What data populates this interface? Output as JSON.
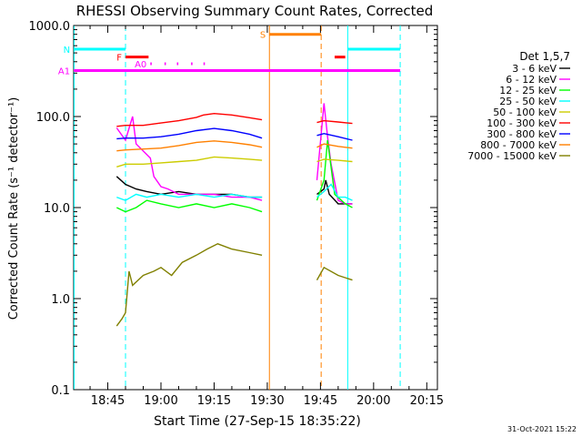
{
  "chart_data": {
    "type": "line",
    "title": "RHESSI Observing Summary Count Rates, Corrected",
    "ylabel": "Corrected Count Rate (s⁻¹ detector⁻¹)",
    "xlabel": "Start Time (27-Sep-15 18:35:22)",
    "x_tick_labels": [
      "18:45",
      "19:00",
      "19:15",
      "19:30",
      "19:45",
      "20:00",
      "20:15"
    ],
    "x_tick_minutes": [
      45,
      60,
      75,
      90,
      105,
      120,
      135
    ],
    "xlim_minutes": [
      35.37,
      138
    ],
    "y_scale": "log",
    "ylim": [
      0.1,
      1000
    ],
    "y_tick_labels": [
      "0.1",
      "1.0",
      "10.0",
      "100.0",
      "1000.0"
    ],
    "y_tick_values": [
      0.1,
      1,
      10,
      100,
      1000
    ],
    "legend_placement": "right",
    "legend_title": "Det 1,5,7",
    "series": [
      {
        "name": "3 - 6 keV",
        "color": "#000000",
        "points": [
          [
            47.5,
            22
          ],
          [
            50,
            18
          ],
          [
            53,
            16
          ],
          [
            56,
            15
          ],
          [
            60,
            14
          ],
          [
            65,
            15
          ],
          [
            70,
            14
          ],
          [
            75,
            14
          ],
          [
            80,
            14
          ],
          [
            85,
            13
          ],
          [
            88.5,
            13
          ],
          [
            100,
            0
          ],
          [
            104,
            14
          ],
          [
            106,
            16
          ],
          [
            106.5,
            20
          ],
          [
            107.5,
            14
          ],
          [
            110,
            11
          ],
          [
            112,
            11
          ],
          [
            114,
            11
          ]
        ]
      },
      {
        "name": "6 - 12 keV",
        "color": "#ff00ff",
        "points": [
          [
            47.5,
            75
          ],
          [
            50,
            55
          ],
          [
            52,
            100
          ],
          [
            53,
            50
          ],
          [
            57,
            35
          ],
          [
            58,
            22
          ],
          [
            60,
            17
          ],
          [
            62,
            16
          ],
          [
            65,
            14
          ],
          [
            70,
            14
          ],
          [
            75,
            14
          ],
          [
            80,
            13
          ],
          [
            85,
            13
          ],
          [
            88.5,
            12
          ],
          [
            100,
            0
          ],
          [
            104,
            20
          ],
          [
            106,
            140
          ],
          [
            107,
            60
          ],
          [
            108,
            30
          ],
          [
            110,
            12
          ],
          [
            112,
            11
          ],
          [
            114,
            11
          ]
        ]
      },
      {
        "name": "12 - 25 keV",
        "color": "#00ff00",
        "points": [
          [
            47.5,
            10
          ],
          [
            50,
            9
          ],
          [
            53,
            10
          ],
          [
            56,
            12
          ],
          [
            60,
            11
          ],
          [
            65,
            10
          ],
          [
            70,
            11
          ],
          [
            75,
            10
          ],
          [
            80,
            11
          ],
          [
            85,
            10
          ],
          [
            88.5,
            9
          ],
          [
            100,
            0
          ],
          [
            104,
            12
          ],
          [
            106,
            20
          ],
          [
            107,
            55
          ],
          [
            109,
            14
          ],
          [
            112,
            11
          ],
          [
            114,
            10
          ]
        ]
      },
      {
        "name": "25 - 50 keV",
        "color": "#00ffff",
        "points": [
          [
            47.5,
            13
          ],
          [
            50,
            12
          ],
          [
            53,
            14
          ],
          [
            56,
            13
          ],
          [
            60,
            14
          ],
          [
            65,
            13
          ],
          [
            70,
            14
          ],
          [
            75,
            13
          ],
          [
            80,
            14
          ],
          [
            85,
            13
          ],
          [
            88.5,
            13
          ],
          [
            100,
            0
          ],
          [
            104,
            13
          ],
          [
            106,
            15
          ],
          [
            108,
            18
          ],
          [
            110,
            13
          ],
          [
            112,
            13
          ],
          [
            114,
            12
          ]
        ]
      },
      {
        "name": "50 - 100 keV",
        "color": "#cccc00",
        "points": [
          [
            47.5,
            28
          ],
          [
            50,
            30
          ],
          [
            55,
            30
          ],
          [
            60,
            31
          ],
          [
            65,
            32
          ],
          [
            70,
            33
          ],
          [
            75,
            36
          ],
          [
            80,
            35
          ],
          [
            85,
            34
          ],
          [
            88.5,
            33
          ],
          [
            100,
            0
          ],
          [
            104,
            32
          ],
          [
            106,
            34
          ],
          [
            110,
            33
          ],
          [
            114,
            32
          ]
        ]
      },
      {
        "name": "100 - 300 keV",
        "color": "#ff0000",
        "points": [
          [
            47.5,
            78
          ],
          [
            50,
            80
          ],
          [
            55,
            80
          ],
          [
            60,
            85
          ],
          [
            65,
            90
          ],
          [
            70,
            98
          ],
          [
            72,
            104
          ],
          [
            75,
            108
          ],
          [
            80,
            104
          ],
          [
            85,
            97
          ],
          [
            88.5,
            92
          ],
          [
            100,
            0
          ],
          [
            104,
            86
          ],
          [
            106,
            90
          ],
          [
            110,
            87
          ],
          [
            114,
            84
          ]
        ]
      },
      {
        "name": "300 - 800 keV",
        "color": "#0000ff",
        "points": [
          [
            47.5,
            57
          ],
          [
            50,
            58
          ],
          [
            55,
            58
          ],
          [
            60,
            60
          ],
          [
            65,
            64
          ],
          [
            70,
            70
          ],
          [
            75,
            74
          ],
          [
            80,
            70
          ],
          [
            85,
            64
          ],
          [
            88.5,
            58
          ],
          [
            100,
            0
          ],
          [
            104,
            62
          ],
          [
            106,
            65
          ],
          [
            110,
            60
          ],
          [
            114,
            55
          ]
        ]
      },
      {
        "name": "800 - 7000 keV",
        "color": "#ff8000",
        "points": [
          [
            47.5,
            42
          ],
          [
            50,
            43
          ],
          [
            55,
            44
          ],
          [
            60,
            45
          ],
          [
            65,
            48
          ],
          [
            70,
            52
          ],
          [
            75,
            54
          ],
          [
            80,
            52
          ],
          [
            85,
            49
          ],
          [
            88.5,
            46
          ],
          [
            100,
            0
          ],
          [
            104,
            46
          ],
          [
            106,
            50
          ],
          [
            110,
            47
          ],
          [
            114,
            45
          ]
        ]
      },
      {
        "name": "7000 - 15000 keV",
        "color": "#808000",
        "points": [
          [
            47.5,
            0.5
          ],
          [
            49,
            0.6
          ],
          [
            50,
            0.7
          ],
          [
            51,
            2.0
          ],
          [
            52,
            1.4
          ],
          [
            55,
            1.8
          ],
          [
            58,
            2.0
          ],
          [
            60,
            2.2
          ],
          [
            63,
            1.8
          ],
          [
            66,
            2.5
          ],
          [
            70,
            3.0
          ],
          [
            73,
            3.5
          ],
          [
            76,
            4.0
          ],
          [
            80,
            3.5
          ],
          [
            85,
            3.2
          ],
          [
            88.5,
            3.0
          ],
          [
            100,
            0
          ],
          [
            104,
            1.6
          ],
          [
            106,
            2.2
          ],
          [
            110,
            1.8
          ],
          [
            114,
            1.6
          ]
        ]
      }
    ],
    "vertical_lines": [
      {
        "x": 35.5,
        "color": "#00ffff",
        "style": "solid"
      },
      {
        "x": 50,
        "color": "#00ffff",
        "style": "dashed"
      },
      {
        "x": 90.6,
        "color": "#ff8000",
        "style": "solid"
      },
      {
        "x": 105.2,
        "color": "#ff8000",
        "style": "dashed"
      },
      {
        "x": 112.7,
        "color": "#00ffff",
        "style": "solid"
      },
      {
        "x": 127.5,
        "color": "#00ffff",
        "style": "dashed"
      }
    ],
    "flag_bars": [
      {
        "label": "N",
        "color": "#00ffff",
        "y": 550,
        "segments": [
          [
            35.4,
            50
          ],
          [
            112.7,
            127.5
          ]
        ]
      },
      {
        "label": "S",
        "color": "#ff8000",
        "y": 800,
        "segments": [
          [
            90.6,
            105.2
          ]
        ]
      },
      {
        "label": "F",
        "color": "#ff0000",
        "y": 450,
        "segments": [
          [
            50,
            56.5
          ],
          [
            109,
            112
          ]
        ]
      },
      {
        "label": "A0",
        "color": "#ff00ff",
        "y": 380,
        "segments": [
          [
            57,
            57.4
          ],
          [
            61,
            61.4
          ],
          [
            64.5,
            64.9
          ],
          [
            68.5,
            68.9
          ],
          [
            72,
            72.4
          ]
        ]
      },
      {
        "label": "A1",
        "color": "#ff00ff",
        "y": 320,
        "segments": [
          [
            35.4,
            50
          ],
          [
            50,
            127.5
          ]
        ]
      }
    ],
    "footer_date": "31-Oct-2021 15:22"
  }
}
